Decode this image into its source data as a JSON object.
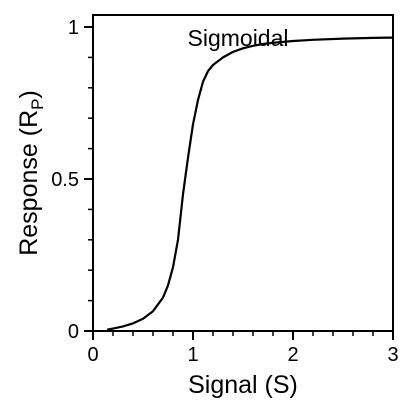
{
  "chart_data": {
    "type": "line",
    "title": "",
    "annotation": "Sigmoidal",
    "xlabel": "Signal (S)",
    "ylabel": {
      "main": "Response (R",
      "subscript": "P",
      "close": ")"
    },
    "xlim": [
      0,
      3
    ],
    "ylim": [
      0,
      1
    ],
    "x_ticks": [
      {
        "value": 0,
        "label": "0"
      },
      {
        "value": 1,
        "label": "1"
      },
      {
        "value": 2,
        "label": "2"
      },
      {
        "value": 3,
        "label": "3"
      }
    ],
    "y_ticks": [
      {
        "value": 0,
        "label": "0"
      },
      {
        "value": 0.5,
        "label": "0.5"
      },
      {
        "value": 1,
        "label": "1"
      }
    ],
    "grid": false,
    "legend": "none",
    "series": [
      {
        "color": "#000000",
        "x": [
          0.15,
          0.2,
          0.3,
          0.4,
          0.5,
          0.6,
          0.7,
          0.75,
          0.8,
          0.85,
          0.9,
          0.95,
          1.0,
          1.05,
          1.1,
          1.15,
          1.2,
          1.3,
          1.4,
          1.5,
          1.6,
          1.7,
          1.8,
          2.0,
          2.2,
          2.5,
          2.8,
          3.0
        ],
        "y": [
          0.005,
          0.008,
          0.015,
          0.025,
          0.04,
          0.065,
          0.11,
          0.15,
          0.21,
          0.3,
          0.45,
          0.57,
          0.68,
          0.76,
          0.82,
          0.855,
          0.875,
          0.9,
          0.918,
          0.93,
          0.938,
          0.944,
          0.948,
          0.954,
          0.958,
          0.962,
          0.964,
          0.965
        ]
      }
    ]
  }
}
